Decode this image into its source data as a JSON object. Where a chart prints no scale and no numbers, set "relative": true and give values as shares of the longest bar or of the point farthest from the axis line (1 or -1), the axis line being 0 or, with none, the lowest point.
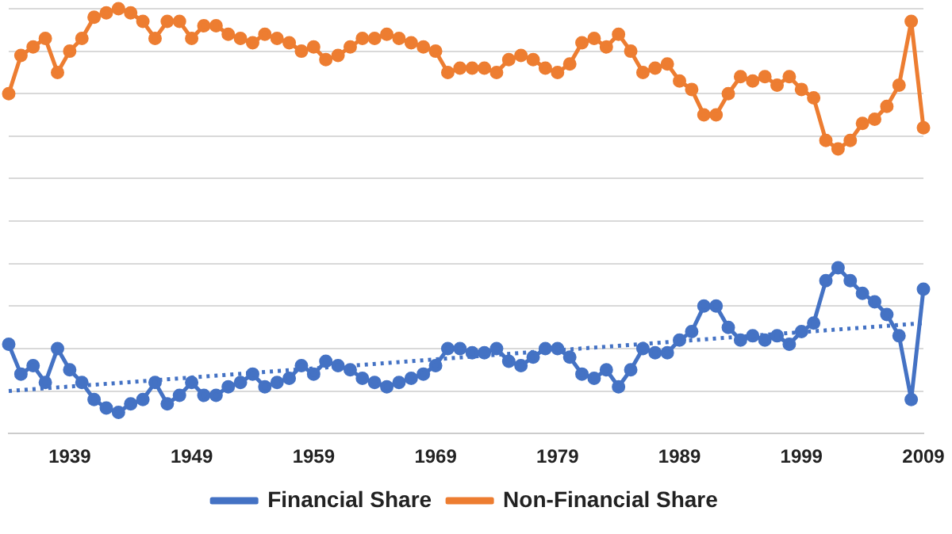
{
  "chart_data": {
    "type": "line",
    "relative": true,
    "grid": "y",
    "legend": "bottom",
    "marker": "circle",
    "categories": [
      null,
      null,
      null,
      null,
      null,
      "1939",
      null,
      null,
      null,
      null,
      null,
      null,
      null,
      null,
      null,
      "1949",
      null,
      null,
      null,
      null,
      null,
      null,
      null,
      null,
      null,
      "1959",
      null,
      null,
      null,
      null,
      null,
      null,
      null,
      null,
      null,
      "1969",
      null,
      null,
      null,
      null,
      null,
      null,
      null,
      null,
      null,
      "1979",
      null,
      null,
      null,
      null,
      null,
      null,
      null,
      null,
      null,
      "1989",
      null,
      null,
      null,
      null,
      null,
      null,
      null,
      null,
      null,
      "1999",
      null,
      null,
      null,
      null,
      null,
      null,
      null,
      null,
      null,
      "2009"
    ],
    "series": [
      {
        "name": "Financial Share",
        "color": "#4472c4",
        "values": [
          0.21,
          0.14,
          0.16,
          0.12,
          0.2,
          0.15,
          0.12,
          0.08,
          0.06,
          0.05,
          0.07,
          0.08,
          0.12,
          0.07,
          0.09,
          0.12,
          0.09,
          0.09,
          0.11,
          0.12,
          0.14,
          0.11,
          0.12,
          0.13,
          0.16,
          0.14,
          0.17,
          0.16,
          0.15,
          0.13,
          0.12,
          0.11,
          0.12,
          0.13,
          0.14,
          0.16,
          0.2,
          0.2,
          0.19,
          0.19,
          0.2,
          0.17,
          0.16,
          0.18,
          0.2,
          0.2,
          0.18,
          0.14,
          0.13,
          0.15,
          0.11,
          0.15,
          0.2,
          0.19,
          0.19,
          0.22,
          0.24,
          0.3,
          0.3,
          0.25,
          0.22,
          0.23,
          0.22,
          0.23,
          0.21,
          0.24,
          0.26,
          0.36,
          0.39,
          0.36,
          0.33,
          0.31,
          0.28,
          0.23,
          0.08,
          0.34
        ]
      },
      {
        "name": "Non-Financial Share",
        "color": "#ed7d31",
        "values": [
          0.8,
          0.89,
          0.91,
          0.93,
          0.85,
          0.9,
          0.93,
          0.98,
          0.99,
          1,
          0.99,
          0.97,
          0.93,
          0.97,
          0.97,
          0.93,
          0.96,
          0.96,
          0.94,
          0.93,
          0.92,
          0.94,
          0.93,
          0.92,
          0.9,
          0.91,
          0.88,
          0.89,
          0.91,
          0.93,
          0.93,
          0.94,
          0.93,
          0.92,
          0.91,
          0.9,
          0.85,
          0.86,
          0.86,
          0.86,
          0.85,
          0.88,
          0.89,
          0.88,
          0.86,
          0.85,
          0.87,
          0.92,
          0.93,
          0.91,
          0.94,
          0.9,
          0.85,
          0.86,
          0.87,
          0.83,
          0.81,
          0.75,
          0.75,
          0.8,
          0.84,
          0.83,
          0.84,
          0.82,
          0.84,
          0.81,
          0.79,
          0.69,
          0.67,
          0.69,
          0.73,
          0.74,
          0.77,
          0.82,
          0.97,
          0.72
        ]
      },
      {
        "type": "line",
        "color": "#4472c4",
        "line_style": "dotted",
        "marker": "none",
        "values": [
          0.1,
          null,
          null,
          null,
          null,
          null,
          null,
          null,
          null,
          null,
          null,
          null,
          null,
          null,
          null,
          null,
          null,
          null,
          null,
          null,
          null,
          null,
          null,
          null,
          null,
          null,
          null,
          null,
          null,
          null,
          null,
          null,
          null,
          null,
          null,
          null,
          null,
          null,
          null,
          null,
          null,
          null,
          null,
          null,
          null,
          null,
          null,
          null,
          null,
          null,
          null,
          null,
          null,
          null,
          null,
          null,
          null,
          null,
          null,
          null,
          null,
          null,
          null,
          null,
          null,
          null,
          null,
          null,
          null,
          null,
          null,
          null,
          null,
          null,
          null,
          0.26
        ]
      }
    ]
  }
}
